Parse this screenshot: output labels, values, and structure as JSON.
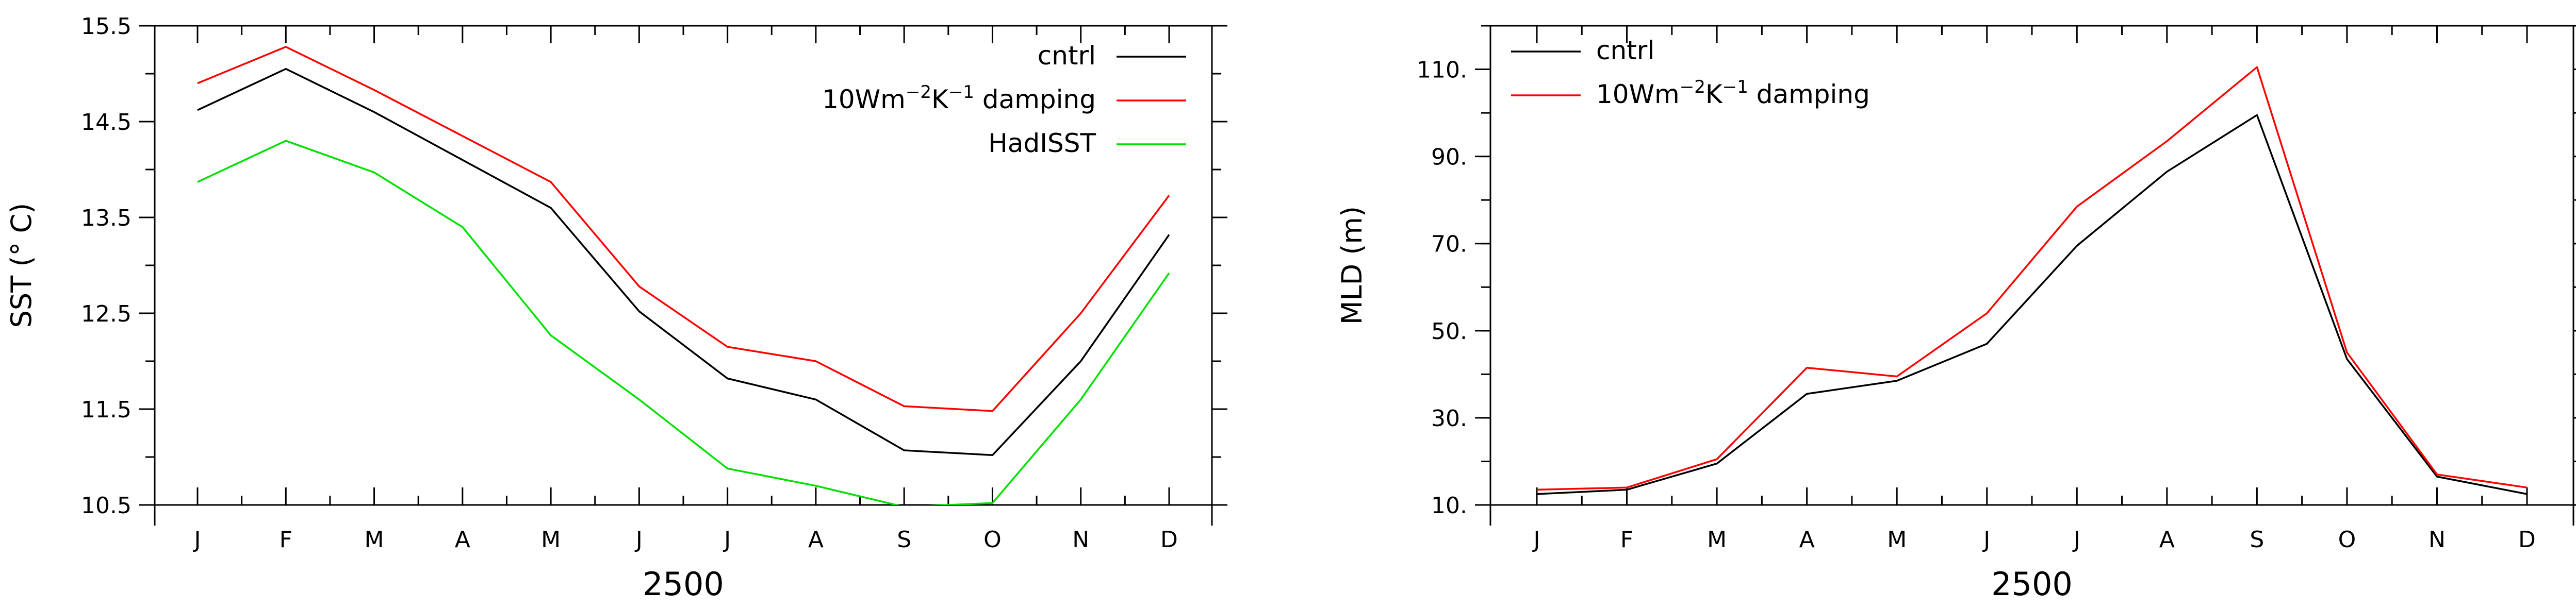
{
  "chart_data": [
    {
      "type": "line",
      "categories": [
        "J",
        "F",
        "M",
        "A",
        "M",
        "J",
        "J",
        "A",
        "S",
        "O",
        "N",
        "D"
      ],
      "xlabel": "2500",
      "ylabel": "SST (° C)",
      "ylim": [
        10.5,
        15.5
      ],
      "yticks": [
        "10.5",
        "11.5",
        "12.5",
        "13.5",
        "14.5",
        "15.5"
      ],
      "legend_position": "top-right",
      "series": [
        {
          "name": "cntrl",
          "color": "#000000",
          "values": [
            14.62,
            15.05,
            14.6,
            14.1,
            13.6,
            12.52,
            11.82,
            11.6,
            11.07,
            11.02,
            12.0,
            13.32
          ]
        },
        {
          "name": "damping",
          "legend_prefix": "10Wm",
          "legend_sup1": "−2",
          "legend_mid": "K",
          "legend_sup2": "−1",
          "color": "#ff0000",
          "values": [
            14.9,
            15.28,
            14.83,
            14.35,
            13.87,
            12.78,
            12.15,
            12.0,
            11.53,
            11.48,
            12.5,
            13.73
          ]
        },
        {
          "name": "HadISST",
          "color": "#00e000",
          "values": [
            13.87,
            14.3,
            13.97,
            13.4,
            12.27,
            11.6,
            10.88,
            10.7,
            10.48,
            10.52,
            11.6,
            12.92
          ]
        }
      ]
    },
    {
      "type": "line",
      "categories": [
        "J",
        "F",
        "M",
        "A",
        "M",
        "J",
        "J",
        "A",
        "S",
        "O",
        "N",
        "D"
      ],
      "xlabel": "2500",
      "ylabel": "MLD (m)",
      "ylim": [
        10,
        120
      ],
      "yticks": [
        "10.",
        "30.",
        "50.",
        "70.",
        "90.",
        "110."
      ],
      "legend_position": "top-left",
      "series": [
        {
          "name": "cntrl",
          "color": "#000000",
          "values": [
            12.5,
            13.5,
            19.5,
            35.5,
            38.5,
            47.0,
            69.5,
            86.5,
            99.5,
            43.5,
            16.5,
            12.5
          ]
        },
        {
          "name": "10Wm−2K−1  damping",
          "legend_prefix": "10Wm",
          "legend_sup1": "−2",
          "legend_mid": "K",
          "legend_sup2": "−1",
          "legend_suffix": "damping",
          "color": "#ff0000",
          "values": [
            13.5,
            14.0,
            20.5,
            41.5,
            39.5,
            54.0,
            78.5,
            93.5,
            110.5,
            45.0,
            17.0,
            14.0
          ]
        }
      ]
    }
  ]
}
